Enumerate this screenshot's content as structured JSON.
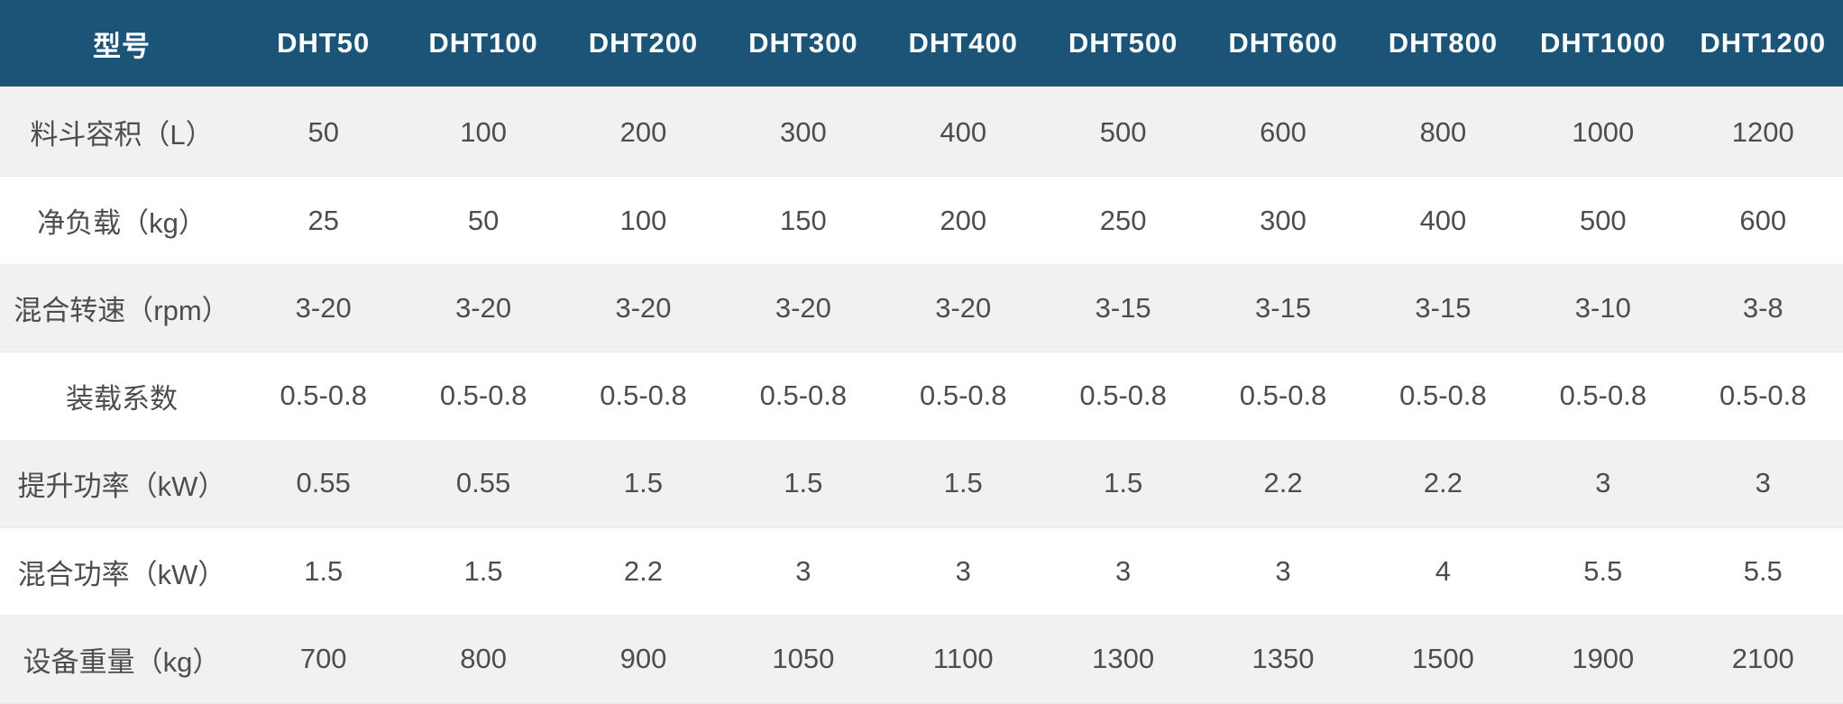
{
  "chart_data": {
    "type": "table",
    "header": {
      "model_label": "型号",
      "models": [
        "DHT50",
        "DHT100",
        "DHT200",
        "DHT300",
        "DHT400",
        "DHT500",
        "DHT600",
        "DHT800",
        "DHT1000",
        "DHT1200"
      ]
    },
    "rows": [
      {
        "label": "料斗容积（L）",
        "values": [
          "50",
          "100",
          "200",
          "300",
          "400",
          "500",
          "600",
          "800",
          "1000",
          "1200"
        ]
      },
      {
        "label": "净负载（kg）",
        "values": [
          "25",
          "50",
          "100",
          "150",
          "200",
          "250",
          "300",
          "400",
          "500",
          "600"
        ]
      },
      {
        "label": "混合转速（rpm）",
        "values": [
          "3-20",
          "3-20",
          "3-20",
          "3-20",
          "3-20",
          "3-15",
          "3-15",
          "3-15",
          "3-10",
          "3-8"
        ]
      },
      {
        "label": "装载系数",
        "values": [
          "0.5-0.8",
          "0.5-0.8",
          "0.5-0.8",
          "0.5-0.8",
          "0.5-0.8",
          "0.5-0.8",
          "0.5-0.8",
          "0.5-0.8",
          "0.5-0.8",
          "0.5-0.8"
        ]
      },
      {
        "label": "提升功率（kW）",
        "values": [
          "0.55",
          "0.55",
          "1.5",
          "1.5",
          "1.5",
          "1.5",
          "2.2",
          "2.2",
          "3",
          "3"
        ]
      },
      {
        "label": "混合功率（kW）",
        "values": [
          "1.5",
          "1.5",
          "2.2",
          "3",
          "3",
          "3",
          "3",
          "4",
          "5.5",
          "5.5"
        ]
      },
      {
        "label": "设备重量（kg）",
        "values": [
          "700",
          "800",
          "900",
          "1050",
          "1100",
          "1300",
          "1350",
          "1500",
          "1900",
          "2100"
        ]
      }
    ]
  },
  "colors": {
    "header_bg": "#1B5476",
    "header_text": "#FFFFFF",
    "row_alt_bg": "#F0F1F1",
    "row_bg": "#FFFFFF",
    "body_text": "#4D4D4D"
  }
}
